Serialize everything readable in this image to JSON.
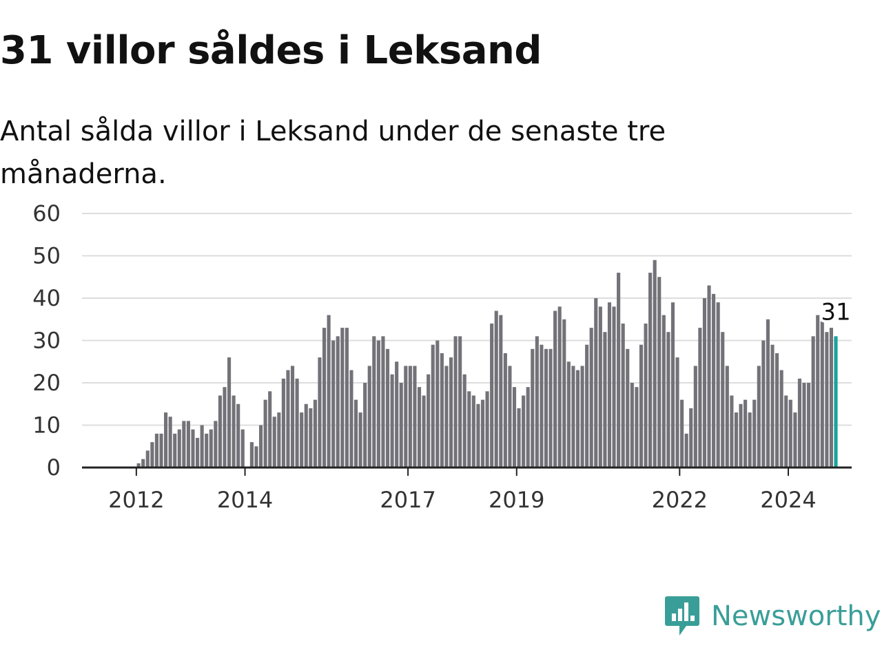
{
  "title": "31 villor såldes i Leksand",
  "subtitle": "Antal sålda villor i Leksand under de senaste tre månaderna.",
  "brand": {
    "name": "Newsworthy",
    "icon": "newsworthy-logo-icon",
    "color": "#3a9e98"
  },
  "chart_data": {
    "type": "bar",
    "x_start": "2011-01",
    "x_end": "2025-03",
    "ylim": [
      0,
      60
    ],
    "y_ticks": [
      0,
      10,
      20,
      30,
      40,
      50,
      60
    ],
    "x_ticks": [
      "2012",
      "2014",
      "2017",
      "2019",
      "2022",
      "2024"
    ],
    "grid": true,
    "bar_color": "#737278",
    "highlight_color": "#1aa39a",
    "annotation": {
      "label": "31",
      "month": "2024-11"
    },
    "series": [
      {
        "months": [
          "2012-01",
          "2012-02",
          "2012-03",
          "2012-04",
          "2012-05",
          "2012-06",
          "2012-07",
          "2012-08",
          "2012-09",
          "2012-10",
          "2012-11",
          "2012-12",
          "2013-01",
          "2013-02",
          "2013-03",
          "2013-04",
          "2013-05",
          "2013-06",
          "2013-07",
          "2013-08",
          "2013-09",
          "2013-10",
          "2013-11",
          "2013-12",
          "2014-01",
          "2014-02",
          "2014-03",
          "2014-04",
          "2014-05",
          "2014-06",
          "2014-07",
          "2014-08",
          "2014-09",
          "2014-10",
          "2014-11",
          "2014-12",
          "2015-01",
          "2015-02",
          "2015-03",
          "2015-04",
          "2015-05",
          "2015-06",
          "2015-07",
          "2015-08",
          "2015-09",
          "2015-10",
          "2015-11",
          "2015-12",
          "2016-01",
          "2016-02",
          "2016-03",
          "2016-04",
          "2016-05",
          "2016-06",
          "2016-07",
          "2016-08",
          "2016-09",
          "2016-10",
          "2016-11",
          "2016-12",
          "2017-01",
          "2017-02",
          "2017-03",
          "2017-04",
          "2017-05",
          "2017-06",
          "2017-07",
          "2017-08",
          "2017-09",
          "2017-10",
          "2017-11",
          "2017-12",
          "2018-01",
          "2018-02",
          "2018-03",
          "2018-04",
          "2018-05",
          "2018-06",
          "2018-07",
          "2018-08",
          "2018-09",
          "2018-10",
          "2018-11",
          "2018-12",
          "2019-01",
          "2019-02",
          "2019-03",
          "2019-04",
          "2019-05",
          "2019-06",
          "2019-07",
          "2019-08",
          "2019-09",
          "2019-10",
          "2019-11",
          "2019-12",
          "2020-01",
          "2020-02",
          "2020-03",
          "2020-04",
          "2020-05",
          "2020-06",
          "2020-07",
          "2020-08",
          "2020-09",
          "2020-10",
          "2020-11",
          "2020-12",
          "2021-01",
          "2021-02",
          "2021-03",
          "2021-04",
          "2021-05",
          "2021-06",
          "2021-07",
          "2021-08",
          "2021-09",
          "2021-10",
          "2021-11",
          "2021-12",
          "2022-01",
          "2022-02",
          "2022-03",
          "2022-04",
          "2022-05",
          "2022-06",
          "2022-07",
          "2022-08",
          "2022-09",
          "2022-10",
          "2022-11",
          "2022-12",
          "2023-01",
          "2023-02",
          "2023-03",
          "2023-04",
          "2023-05",
          "2023-06",
          "2023-07",
          "2023-08",
          "2023-09",
          "2023-10",
          "2023-11",
          "2023-12",
          "2024-01",
          "2024-02",
          "2024-03",
          "2024-04",
          "2024-05",
          "2024-06",
          "2024-07",
          "2024-08",
          "2024-09",
          "2024-10",
          "2024-11"
        ],
        "values": [
          1,
          2,
          4,
          6,
          8,
          8,
          13,
          12,
          8,
          9,
          11,
          11,
          9,
          7,
          10,
          8,
          9,
          11,
          17,
          19,
          26,
          17,
          15,
          9,
          0,
          6,
          5,
          10,
          16,
          18,
          12,
          13,
          21,
          23,
          24,
          21,
          13,
          15,
          14,
          16,
          26,
          33,
          36,
          30,
          31,
          33,
          33,
          23,
          16,
          13,
          20,
          24,
          31,
          30,
          31,
          28,
          22,
          25,
          20,
          24,
          24,
          24,
          19,
          17,
          22,
          29,
          30,
          27,
          24,
          26,
          31,
          31,
          22,
          18,
          17,
          15,
          16,
          18,
          34,
          37,
          36,
          27,
          24,
          19,
          14,
          17,
          19,
          28,
          31,
          29,
          28,
          28,
          37,
          38,
          35,
          25,
          24,
          23,
          24,
          29,
          33,
          40,
          38,
          32,
          39,
          38,
          46,
          34,
          28,
          20,
          19,
          29,
          34,
          46,
          49,
          45,
          36,
          32,
          39,
          26,
          16,
          8,
          14,
          24,
          33,
          40,
          43,
          41,
          39,
          32,
          24,
          17,
          13,
          15,
          16,
          13,
          16,
          24,
          30,
          35,
          29,
          27,
          23,
          17,
          16,
          13,
          21,
          20,
          20,
          31,
          36,
          36,
          32,
          33,
          31
        ]
      }
    ]
  }
}
